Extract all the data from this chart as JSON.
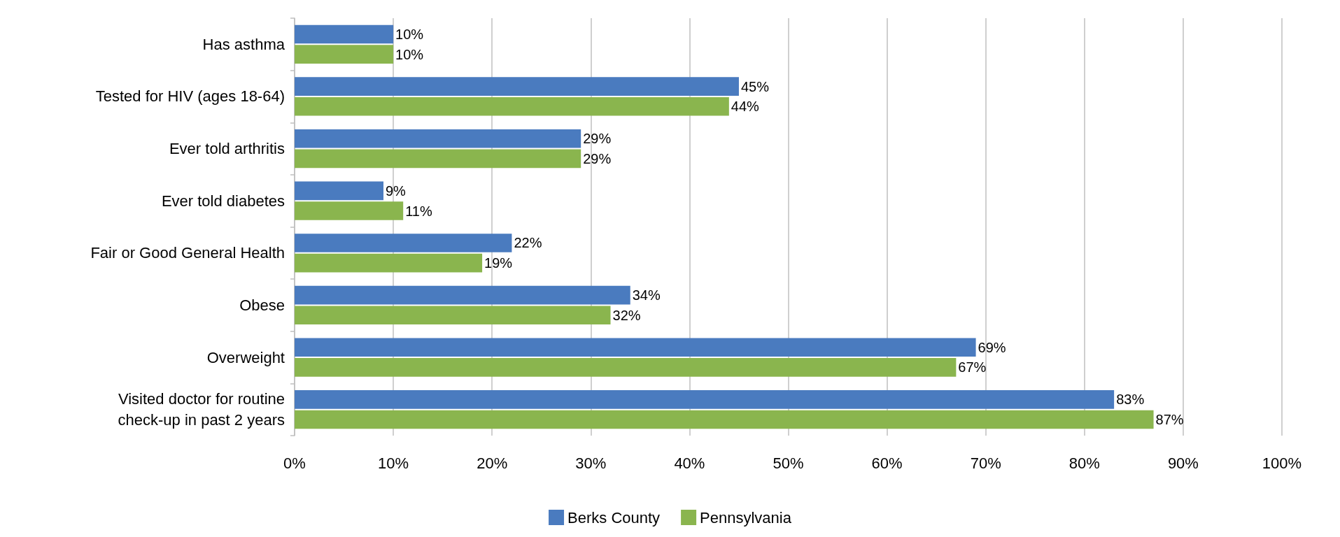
{
  "chart_data": {
    "type": "bar",
    "orientation": "horizontal",
    "categories": [
      "Has asthma",
      "Tested for HIV (ages 18-64)",
      "Ever told arthritis",
      "Ever told diabetes",
      "Fair or Good General Health",
      "Obese",
      "Overweight",
      "Visited doctor for routine\ncheck-up in past 2 years"
    ],
    "series": [
      {
        "name": "Berks County",
        "color": "#4a7bbf",
        "values": [
          10,
          45,
          29,
          9,
          22,
          34,
          69,
          83
        ],
        "value_labels": [
          "10%",
          "45%",
          "29%",
          "9%",
          "22%",
          "34%",
          "69%",
          "83%"
        ]
      },
      {
        "name": "Pennsylvania",
        "color": "#8ab54e",
        "values": [
          10,
          44,
          29,
          11,
          19,
          32,
          67,
          87
        ],
        "value_labels": [
          "10%",
          "44%",
          "29%",
          "11%",
          "19%",
          "32%",
          "67%",
          "87%"
        ]
      }
    ],
    "xlim": [
      0,
      100
    ],
    "xticks": [
      {
        "value": 0,
        "label": "0%"
      },
      {
        "value": 10,
        "label": "10%"
      },
      {
        "value": 20,
        "label": "20%"
      },
      {
        "value": 30,
        "label": "30%"
      },
      {
        "value": 40,
        "label": "40%"
      },
      {
        "value": 50,
        "label": "50%"
      },
      {
        "value": 60,
        "label": "60%"
      },
      {
        "value": 70,
        "label": "70%"
      },
      {
        "value": 80,
        "label": "80%"
      },
      {
        "value": 90,
        "label": "90%"
      },
      {
        "value": 100,
        "label": "100%"
      }
    ],
    "grid": "x",
    "legend": "bottom"
  }
}
